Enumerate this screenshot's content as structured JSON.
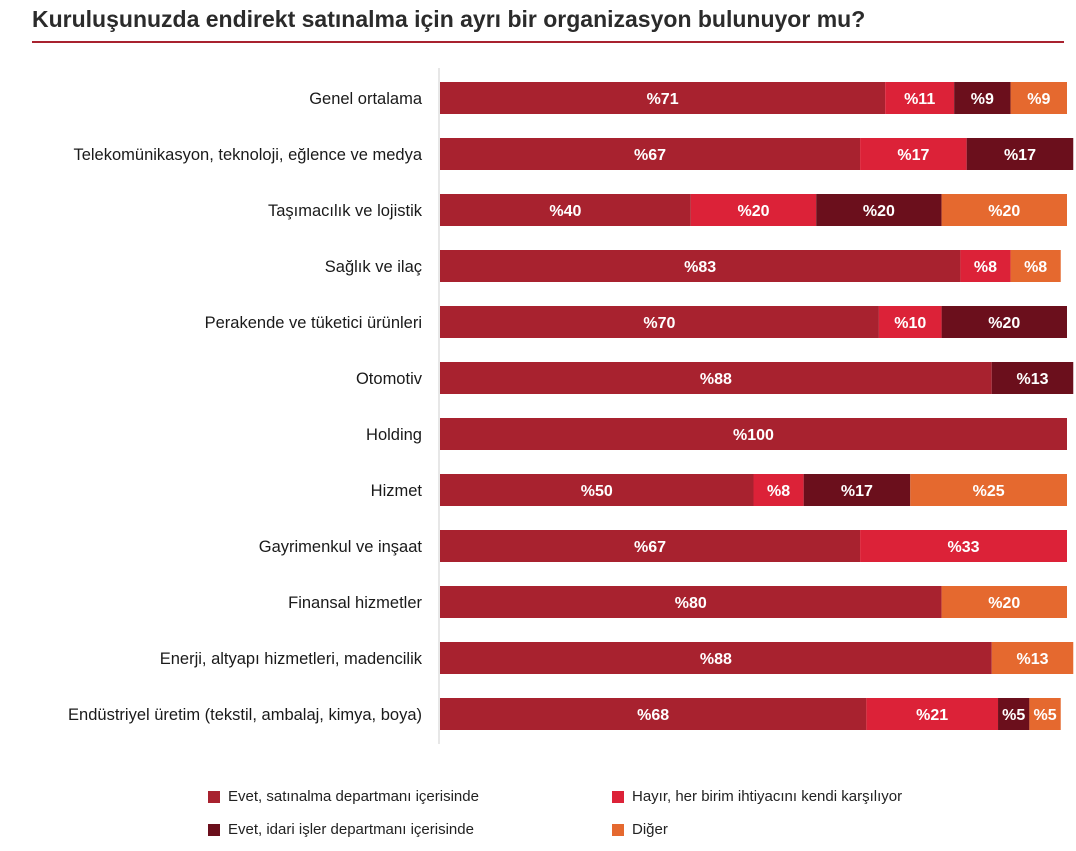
{
  "title": "Kuruluşunuzda endirekt satınalma için ayrı bir organizasyon bulunuyor mu?",
  "colors": {
    "evet_satinalma": "#a8222f",
    "hayir": "#dc2238",
    "evet_idari": "#6b0f1c",
    "diger": "#e5692f",
    "title_rule": "#a8222f"
  },
  "chart_data": {
    "type": "bar",
    "orientation": "horizontal",
    "stacked": true,
    "value_prefix": "%",
    "xlim": [
      0,
      100
    ],
    "legend_position": "bottom",
    "categories": [
      "Genel ortalama",
      "Telekomünikasyon, teknoloji, eğlence ve medya",
      "Taşımacılık ve lojistik",
      "Sağlık ve ilaç",
      "Perakende ve tüketici ürünleri",
      "Otomotiv",
      "Holding",
      "Hizmet",
      "Gayrimenkul ve inşaat",
      "Finansal hizmetler",
      "Enerji, altyapı hizmetleri, madencilik",
      "Endüstriyel üretim (tekstil, ambalaj, kimya, boya)"
    ],
    "series": [
      {
        "name": "Evet, satınalma departmanı içerisinde",
        "color_key": "evet_satinalma",
        "values": [
          71,
          67,
          40,
          83,
          70,
          88,
          100,
          50,
          67,
          80,
          88,
          68
        ]
      },
      {
        "name": "Hayır, her birim ihtiyacını kendi karşılıyor",
        "color_key": "hayir",
        "values": [
          11,
          17,
          20,
          8,
          10,
          0,
          0,
          8,
          33,
          0,
          0,
          21
        ]
      },
      {
        "name": "Evet, idari işler departmanı içerisinde",
        "color_key": "evet_idari",
        "values": [
          9,
          17,
          20,
          0,
          20,
          13,
          0,
          17,
          0,
          0,
          0,
          5
        ]
      },
      {
        "name": "Diğer",
        "color_key": "diger",
        "values": [
          9,
          0,
          20,
          8,
          0,
          0,
          0,
          25,
          0,
          20,
          13,
          5
        ]
      }
    ]
  }
}
